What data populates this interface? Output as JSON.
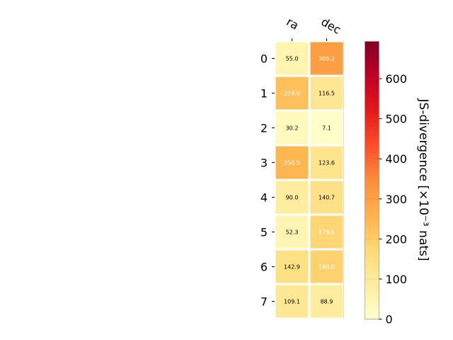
{
  "chart_data": {
    "type": "heatmap",
    "x_categories": [
      "ra",
      "dec"
    ],
    "y_categories": [
      "0",
      "1",
      "2",
      "3",
      "4",
      "5",
      "6",
      "7"
    ],
    "values": [
      [
        55.0,
        306.2
      ],
      [
        229.6,
        116.5
      ],
      [
        30.2,
        7.1
      ],
      [
        250.5,
        123.6
      ],
      [
        90.0,
        140.7
      ],
      [
        52.3,
        179.6
      ],
      [
        142.9,
        188.0
      ],
      [
        109.1,
        88.9
      ]
    ],
    "value_labels": [
      [
        "55.0",
        "306.2"
      ],
      [
        "229.6",
        "116.5"
      ],
      [
        "30.2",
        "7.1"
      ],
      [
        "250.5",
        "123.6"
      ],
      [
        "90.0",
        "140.7"
      ],
      [
        "52.3",
        "179.6"
      ],
      [
        "142.9",
        "188.0"
      ],
      [
        "109.1",
        "88.9"
      ]
    ],
    "colorbar": {
      "label": "JS-divergence [×10⁻³ nats]",
      "range": [
        0,
        693
      ],
      "ticks": [
        "0",
        "100",
        "200",
        "300",
        "400",
        "500",
        "600"
      ],
      "colormap": "YlOrRd"
    },
    "title": "",
    "xlabel": "",
    "ylabel": ""
  }
}
